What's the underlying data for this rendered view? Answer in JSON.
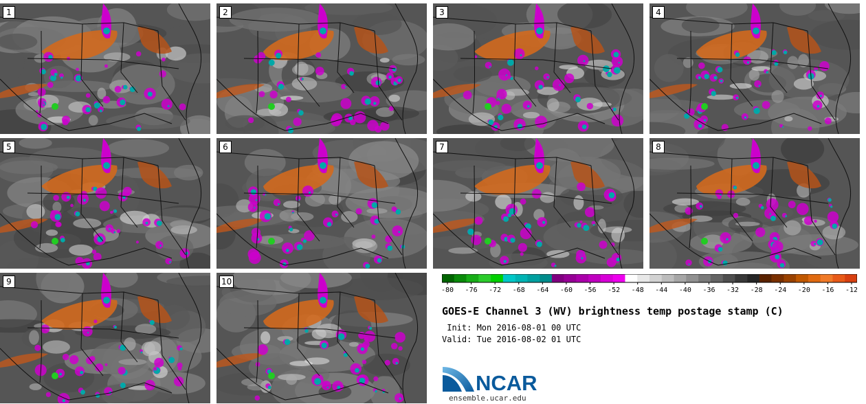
{
  "panels": [
    {
      "label": "1",
      "variant": 0
    },
    {
      "label": "2",
      "variant": 1
    },
    {
      "label": "3",
      "variant": 2
    },
    {
      "label": "4",
      "variant": 3
    },
    {
      "label": "5",
      "variant": 4
    },
    {
      "label": "6",
      "variant": 5
    },
    {
      "label": "7",
      "variant": 6
    },
    {
      "label": "8",
      "variant": 7
    },
    {
      "label": "9",
      "variant": 8
    },
    {
      "label": "10",
      "variant": 9
    }
  ],
  "colorbar": {
    "tick_labels": [
      "-80",
      "-76",
      "-72",
      "-68",
      "-64",
      "-60",
      "-56",
      "-52",
      "-48",
      "-44",
      "-40",
      "-36",
      "-32",
      "-28",
      "-24",
      "-20",
      "-16",
      "-12"
    ],
    "colors": [
      "#006400",
      "#0a8a0a",
      "#17ad17",
      "#2ccc2c",
      "#00d000",
      "#00c8c8",
      "#00b4b4",
      "#00a0a0",
      "#008c8c",
      "#800080",
      "#960096",
      "#aa00aa",
      "#c000c0",
      "#d800d8",
      "#ee00ee",
      "#ffffff",
      "#e8e8e8",
      "#d2d2d2",
      "#bcbcbc",
      "#a6a6a6",
      "#909090",
      "#7a7a7a",
      "#646464",
      "#4e4e4e",
      "#383838",
      "#262626",
      "#5a2200",
      "#7a3000",
      "#9a4200",
      "#c05800",
      "#e06a10",
      "#f07a28",
      "#e85a18",
      "#d84010"
    ]
  },
  "title": "GOES-E Channel 3 (WV) brightness temp postage stamp (C)",
  "init_line": " Init: Mon 2016-08-01 00 UTC",
  "valid_line": "Valid: Tue 2016-08-02 01 UTC",
  "logo_text": "NCAR",
  "url": "ensemble.ucar.edu"
}
